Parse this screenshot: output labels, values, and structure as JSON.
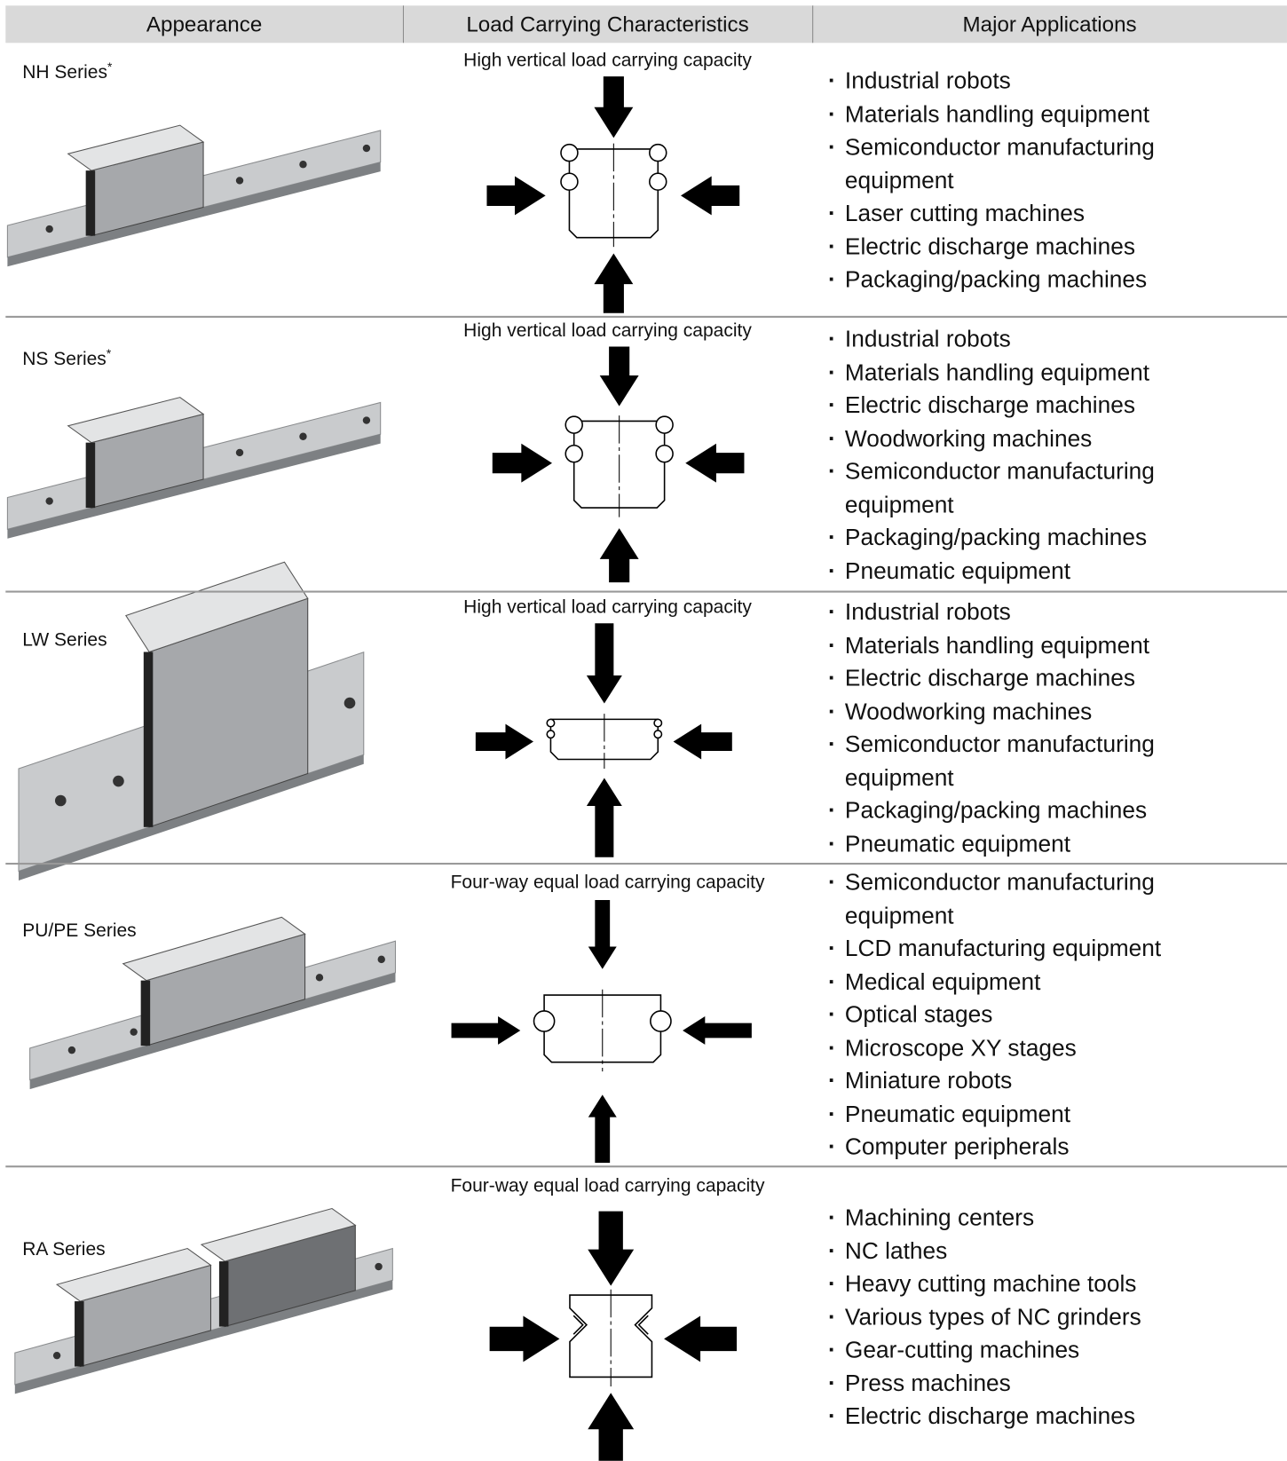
{
  "header": {
    "columns": [
      "Appearance",
      "Load Carrying Characteristics",
      "Major Applications"
    ]
  },
  "rows": [
    {
      "series": "NH Series",
      "note": "*",
      "load": "High vertical load carrying capacity",
      "applications": [
        "Industrial robots",
        "Materials handling equipment",
        "Semiconductor manufacturing equipment",
        "Laser cutting machines",
        "Electric discharge machines",
        "Packaging/packing machines"
      ]
    },
    {
      "series": "NS Series",
      "note": "*",
      "load": "High vertical load carrying capacity",
      "applications": [
        "Industrial robots",
        "Materials handling equipment",
        "Electric discharge machines",
        "Woodworking machines",
        "Semiconductor manufacturing equipment",
        "Packaging/packing machines",
        "Pneumatic equipment"
      ]
    },
    {
      "series": "LW Series",
      "load": "High vertical load carrying capacity",
      "applications": [
        "Industrial robots",
        "Materials handling equipment",
        "Electric discharge machines",
        "Woodworking machines",
        "Semiconductor manufacturing equipment",
        "Packaging/packing machines",
        "Pneumatic equipment"
      ]
    },
    {
      "series": "PU/PE Series",
      "load": "Four-way equal load carrying capacity",
      "applications": [
        "Semiconductor manufacturing equipment",
        "LCD manufacturing equipment",
        "Medical equipment",
        "Optical stages",
        "Microscope XY stages",
        "Miniature robots",
        "Pneumatic equipment",
        "Computer peripherals"
      ]
    },
    {
      "series": "RA Series",
      "load": "Four-way equal load carrying capacity",
      "applications": [
        "Machining centers",
        "NC lathes",
        "Heavy cutting machine tools",
        "Various types of NC grinders",
        "Gear-cutting machines",
        "Press machines",
        "Electric discharge machines"
      ]
    }
  ]
}
